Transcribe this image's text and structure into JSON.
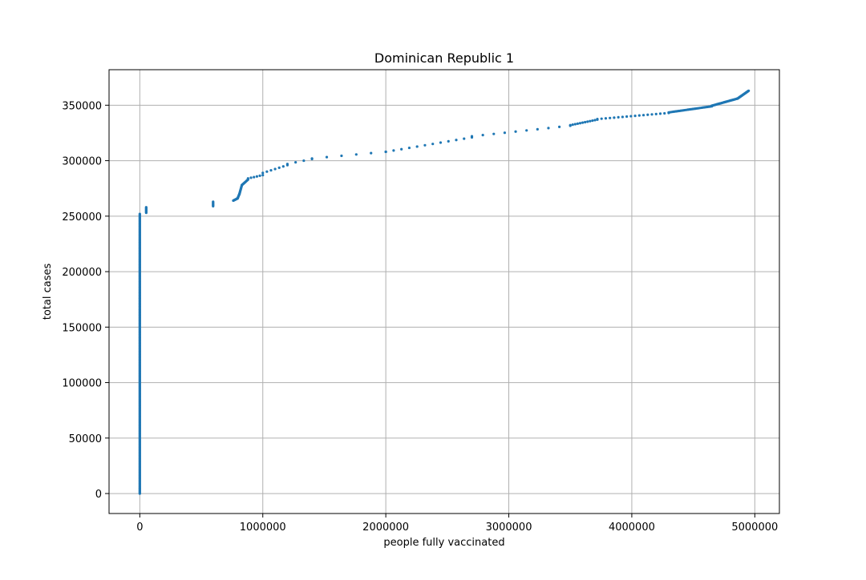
{
  "chart_data": {
    "type": "scatter",
    "title": "Dominican Republic 1",
    "xlabel": "people fully vaccinated",
    "ylabel": "total cases",
    "xlim": [
      -250000,
      5200000
    ],
    "ylim": [
      -18000,
      382000
    ],
    "xticks": [
      0,
      1000000,
      2000000,
      3000000,
      4000000,
      5000000
    ],
    "xtick_labels": [
      "0",
      "1000000",
      "2000000",
      "3000000",
      "4000000",
      "5000000"
    ],
    "yticks": [
      0,
      50000,
      100000,
      150000,
      200000,
      250000,
      300000,
      350000
    ],
    "ytick_labels": [
      "0",
      "50000",
      "100000",
      "150000",
      "200000",
      "250000",
      "300000",
      "350000"
    ],
    "grid": true,
    "marker_color": "#1f77b4",
    "series": [
      {
        "segments": [
          {
            "x_start": 0,
            "x_end": 0,
            "y_start": 0,
            "y_end": 252000,
            "count": 300
          },
          {
            "x_start": 52000,
            "x_end": 52000,
            "y_start": 253000,
            "y_end": 258000,
            "count": 8
          },
          {
            "x_start": 596000,
            "x_end": 596000,
            "y_start": 259000,
            "y_end": 263000,
            "count": 6
          },
          {
            "x_start": 760000,
            "x_end": 795000,
            "y_start": 264000,
            "y_end": 266000,
            "count": 12
          },
          {
            "x_start": 795000,
            "x_end": 810000,
            "y_start": 266000,
            "y_end": 270000,
            "count": 8
          },
          {
            "x_start": 810000,
            "x_end": 830000,
            "y_start": 270000,
            "y_end": 278000,
            "count": 12
          },
          {
            "x_start": 830000,
            "x_end": 880000,
            "y_start": 278000,
            "y_end": 283000,
            "count": 10
          },
          {
            "x_start": 880000,
            "x_end": 1000000,
            "y_start": 284000,
            "y_end": 287000,
            "count": 6
          },
          {
            "x_start": 1000000,
            "x_end": 1200000,
            "y_start": 289000,
            "y_end": 296000,
            "count": 7
          },
          {
            "x_start": 1200000,
            "x_end": 1400000,
            "y_start": 297000,
            "y_end": 301500,
            "count": 4
          },
          {
            "x_start": 1400000,
            "x_end": 2000000,
            "y_start": 302000,
            "y_end": 308000,
            "count": 6
          },
          {
            "x_start": 2000000,
            "x_end": 2700000,
            "y_start": 308000,
            "y_end": 321000,
            "count": 12
          },
          {
            "x_start": 2700000,
            "x_end": 3500000,
            "y_start": 322000,
            "y_end": 331500,
            "count": 10
          },
          {
            "x_start": 3500000,
            "x_end": 3720000,
            "y_start": 332000,
            "y_end": 337000,
            "count": 12
          },
          {
            "x_start": 3720000,
            "x_end": 4300000,
            "y_start": 337500,
            "y_end": 343000,
            "count": 18
          },
          {
            "x_start": 4300000,
            "x_end": 4650000,
            "y_start": 343500,
            "y_end": 349000,
            "count": 30
          },
          {
            "x_start": 4650000,
            "x_end": 4860000,
            "y_start": 349500,
            "y_end": 356000,
            "count": 35
          },
          {
            "x_start": 4860000,
            "x_end": 4950000,
            "y_start": 356000,
            "y_end": 363000,
            "count": 22
          }
        ]
      }
    ]
  }
}
